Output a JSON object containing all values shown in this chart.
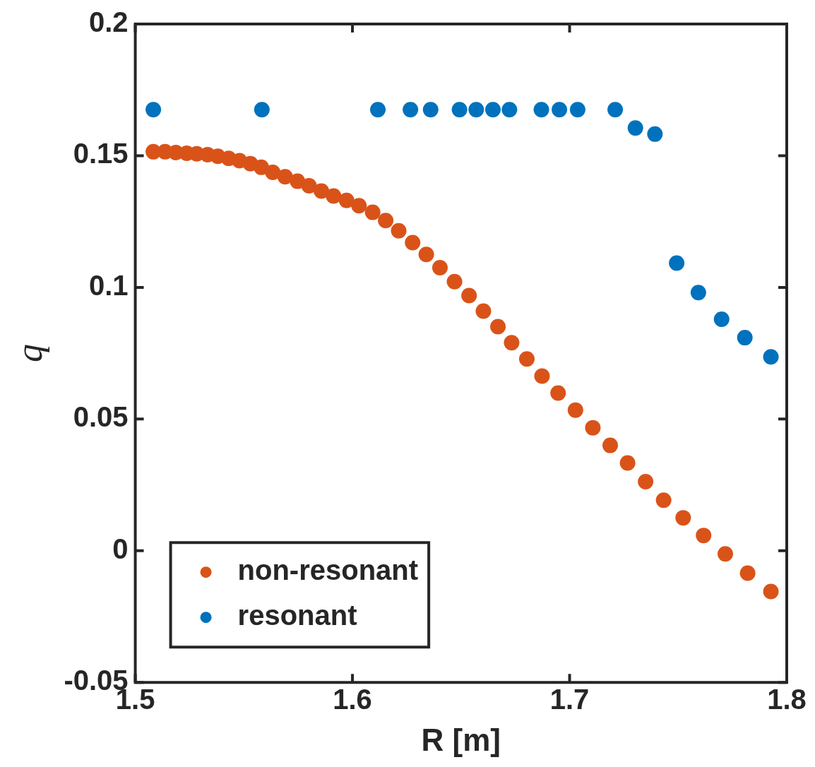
{
  "chart_data": {
    "type": "scatter",
    "xlabel": "R [m]",
    "ylabel": "q",
    "xlim": [
      1.5,
      1.8
    ],
    "xticks": [
      1.5,
      1.6,
      1.7,
      1.8
    ],
    "ylim": [
      -0.05,
      0.2
    ],
    "yticks": [
      -0.05,
      0,
      0.05,
      0.1,
      0.15,
      0.2
    ],
    "grid": false,
    "legend": "bottom left",
    "marker": "circle",
    "series": [
      {
        "name": "non-resonant",
        "color": "#d95319",
        "x": [
          1.5083,
          1.5137,
          1.5187,
          1.5237,
          1.5283,
          1.5333,
          1.538,
          1.543,
          1.548,
          1.553,
          1.558,
          1.5633,
          1.569,
          1.5747,
          1.58,
          1.5857,
          1.5913,
          1.5973,
          1.603,
          1.6093,
          1.6153,
          1.6213,
          1.6277,
          1.634,
          1.6403,
          1.647,
          1.6537,
          1.6603,
          1.667,
          1.6733,
          1.6803,
          1.6873,
          1.6947,
          1.7027,
          1.7107,
          1.7187,
          1.7267,
          1.735,
          1.7433,
          1.7523,
          1.7617,
          1.7717,
          1.782,
          1.7927
        ],
        "values": [
          0.1515,
          0.1515,
          0.1512,
          0.1509,
          0.1507,
          0.1504,
          0.1498,
          0.149,
          0.1481,
          0.147,
          0.1456,
          0.1437,
          0.142,
          0.1403,
          0.1386,
          0.1366,
          0.1347,
          0.133,
          0.131,
          0.1285,
          0.1254,
          0.1215,
          0.117,
          0.1125,
          0.1075,
          0.1022,
          0.0969,
          0.091,
          0.0851,
          0.079,
          0.0728,
          0.0663,
          0.0599,
          0.0534,
          0.0467,
          0.04,
          0.0333,
          0.0262,
          0.0192,
          0.0125,
          0.0058,
          -0.0012,
          -0.0085,
          -0.0155
        ]
      },
      {
        "name": "resonant",
        "color": "#0072bd",
        "x": [
          1.5083,
          1.5583,
          1.6117,
          1.6267,
          1.636,
          1.6493,
          1.657,
          1.6647,
          1.6723,
          1.687,
          1.6953,
          1.7037,
          1.721,
          1.7303,
          1.7393,
          1.7493,
          1.7593,
          1.77,
          1.7807,
          1.7927
        ],
        "values": [
          0.1675,
          0.1675,
          0.1675,
          0.1675,
          0.1675,
          0.1675,
          0.1675,
          0.1675,
          0.1675,
          0.1675,
          0.1675,
          0.1675,
          0.1675,
          0.1605,
          0.1582,
          0.1092,
          0.098,
          0.0879,
          0.0809,
          0.0736
        ]
      }
    ]
  }
}
